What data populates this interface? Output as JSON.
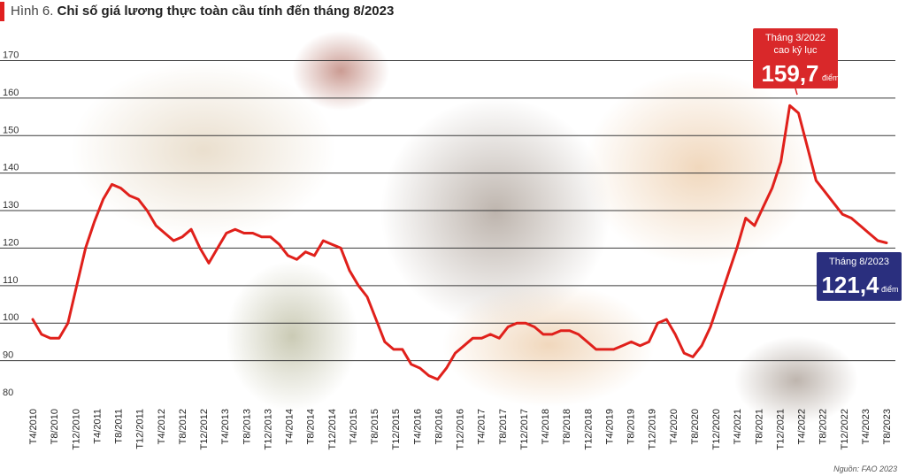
{
  "title_prefix": "Hình 6.",
  "title_main": "Chỉ số giá lương thực toàn cầu tính đến tháng 8/2023",
  "source": "Nguồn: FAO 2023",
  "colors": {
    "line": "#e0201b",
    "grid": "#3a3a3a",
    "peak_box": "#d9282a",
    "latest_box": "#2a2f7e",
    "background_tint": "#efe6d8"
  },
  "annotations": {
    "peak": {
      "line1": "Tháng 3/2022",
      "line2": "cao kỷ lục",
      "value": "159,7",
      "unit": "điểm"
    },
    "latest": {
      "line1": "Tháng 8/2023",
      "value": "121,4",
      "unit": "điểm"
    }
  },
  "chart_data": {
    "type": "line",
    "title": "Chỉ số giá lương thực toàn cầu tính đến tháng 8/2023",
    "ylim": [
      80,
      172
    ],
    "y_ticks": [
      80,
      90,
      100,
      110,
      120,
      130,
      140,
      150,
      160,
      170
    ],
    "grid": true,
    "x_tick_labels": [
      "T4/2010",
      "T8/2010",
      "T12/2010",
      "T4/2011",
      "T8/2011",
      "T12/2011",
      "T4/2012",
      "T8/2012",
      "T12/2012",
      "T4/2013",
      "T8/2013",
      "T12/2013",
      "T4/2014",
      "T8/2014",
      "T12/2014",
      "T4/2015",
      "T8/2015",
      "T12/2015",
      "T4/2016",
      "T8/2016",
      "T12/2016",
      "T4/2017",
      "T8/2017",
      "T12/2017",
      "T4/2018",
      "T8/2018",
      "T12/2018",
      "T4/2019",
      "T8/2019",
      "T12/2019",
      "T4/2020",
      "T8/2020",
      "T12/2020",
      "T4/2021",
      "T8/2021",
      "T12/2021",
      "T4/2022",
      "T8/2022",
      "T12/2022",
      "T4/2023",
      "T8/2023"
    ],
    "series": [
      {
        "values": [
          101,
          97,
          96,
          96,
          100,
          110,
          120,
          127,
          133,
          137,
          136,
          134,
          133,
          130,
          126,
          124,
          122,
          123,
          125,
          120,
          116,
          120,
          124,
          125,
          124,
          124,
          123,
          123,
          121,
          118,
          117,
          119,
          118,
          122,
          121,
          120,
          114,
          110,
          107,
          101,
          95,
          93,
          93,
          89,
          88,
          86,
          85,
          88,
          92,
          94,
          96,
          96,
          97,
          96,
          99,
          100,
          100,
          99,
          97,
          97,
          98,
          98,
          97,
          95,
          93,
          93,
          93,
          94,
          95,
          94,
          95,
          100,
          101,
          97,
          92,
          91,
          94,
          99,
          106,
          113,
          120,
          128,
          126,
          131,
          136,
          143,
          158,
          156,
          147,
          138,
          135,
          132,
          129,
          128,
          126,
          124,
          122,
          121.4
        ]
      }
    ]
  }
}
